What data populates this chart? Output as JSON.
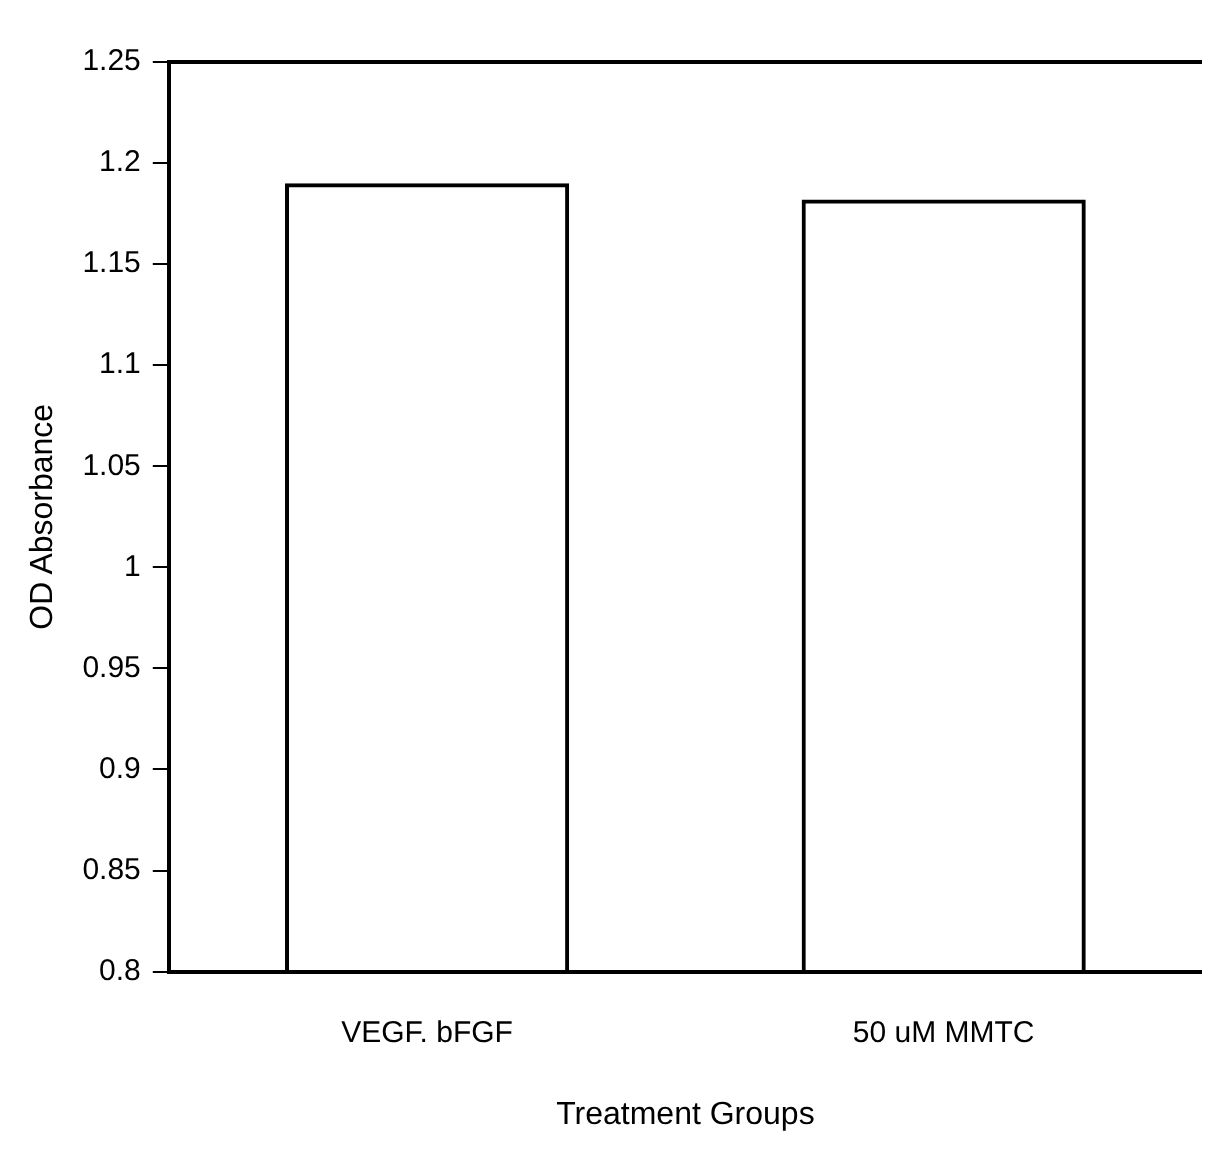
{
  "chart_data": {
    "type": "bar",
    "xlabel": "Treatment Groups",
    "ylabel": "OD Absorbance",
    "categories": [
      "VEGF. bFGF",
      "50 uM MMTC"
    ],
    "values": [
      1.19,
      1.182
    ],
    "color": "#000000",
    "ylim": [
      0.8,
      1.25
    ],
    "yticks": [
      0.8,
      0.85,
      0.9,
      0.95,
      1,
      1.05,
      1.1,
      1.15,
      1.2,
      1.25
    ],
    "grid": false,
    "legend": false
  }
}
